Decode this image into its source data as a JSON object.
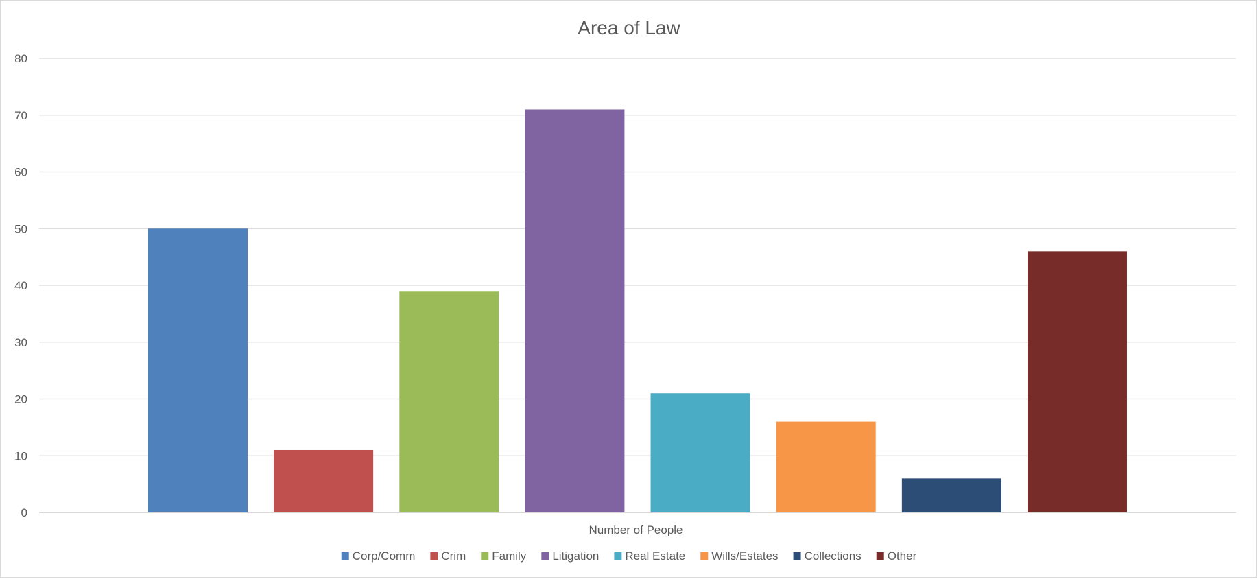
{
  "chart_data": {
    "type": "bar",
    "title": "Area of Law",
    "xlabel": "Number of People",
    "ylabel": "",
    "ylim": [
      0,
      80
    ],
    "yticks": [
      0,
      10,
      20,
      30,
      40,
      50,
      60,
      70,
      80
    ],
    "grid": true,
    "legend_position": "bottom",
    "series": [
      {
        "name": "Corp/Comm",
        "values": [
          50
        ],
        "color": "#4F81BD"
      },
      {
        "name": "Crim",
        "values": [
          11
        ],
        "color": "#C0504D"
      },
      {
        "name": "Family",
        "values": [
          39
        ],
        "color": "#9BBB59"
      },
      {
        "name": "Litigation",
        "values": [
          71
        ],
        "color": "#8064A2"
      },
      {
        "name": "Real Estate",
        "values": [
          21
        ],
        "color": "#4BACC6"
      },
      {
        "name": "Wills/Estates",
        "values": [
          16
        ],
        "color": "#F79646"
      },
      {
        "name": "Collections",
        "values": [
          6
        ],
        "color": "#2C4D75"
      },
      {
        "name": "Other",
        "values": [
          46
        ],
        "color": "#772C2A"
      }
    ]
  }
}
